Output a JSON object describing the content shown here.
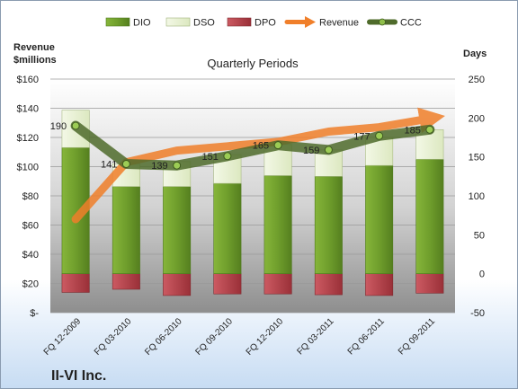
{
  "company": "II-VI Inc.",
  "chart_data": {
    "type": "bar",
    "title": "Quarterly Periods",
    "categories": [
      "FQ 12-2009",
      "FQ 03-2010",
      "FQ 06-2010",
      "FQ 09-2010",
      "FQ 12-2010",
      "FQ 03-2011",
      "FQ 06-2011",
      "FQ 09-2011"
    ],
    "left_axis": {
      "label_line1": "Revenue",
      "label_line2": "$millions",
      "range": [
        0,
        160
      ],
      "ticks": [
        "$-",
        "$20",
        "$40",
        "$60",
        "$80",
        "$100",
        "$120",
        "$140",
        "$160"
      ]
    },
    "right_axis": {
      "label": "Days",
      "range": [
        -50,
        250
      ],
      "ticks": [
        "-50",
        "0",
        "50",
        "100",
        "150",
        "200",
        "250"
      ]
    },
    "series": [
      {
        "name": "DIO",
        "axis": "right",
        "kind": "stacked-bar",
        "color": "#6b9a2a",
        "values": [
          162,
          112,
          112,
          116,
          126,
          125,
          139,
          147
        ]
      },
      {
        "name": "DSO",
        "axis": "right",
        "kind": "stacked-bar",
        "color": "#e6efd0",
        "values": [
          48,
          29,
          32,
          37,
          40,
          34,
          36,
          38
        ]
      },
      {
        "name": "DPO",
        "axis": "right",
        "kind": "negative-bar",
        "color": "#b8474f",
        "values": [
          -24,
          -20,
          -28,
          -26,
          -26,
          -27,
          -28,
          -25
        ]
      },
      {
        "name": "Revenue",
        "axis": "left",
        "kind": "line",
        "color": "#f07f2a",
        "values": [
          64,
          103,
          111,
          114,
          117,
          124,
          127,
          133
        ]
      },
      {
        "name": "CCC",
        "axis": "right",
        "kind": "line-markers",
        "color": "#4f6b2b",
        "values": [
          190,
          141,
          139,
          151,
          165,
          159,
          177,
          185
        ]
      }
    ],
    "data_labels": [
      "190",
      "141",
      "139",
      "151",
      "165",
      "159",
      "177",
      "185"
    ],
    "legend_position": "top"
  }
}
